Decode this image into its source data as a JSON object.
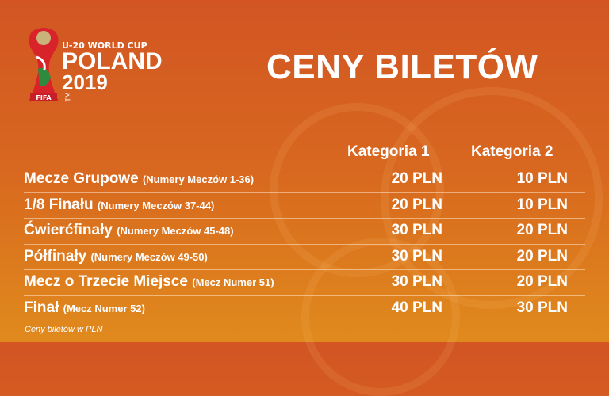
{
  "logo": {
    "line1": "U-20 WORLD CUP",
    "line2": "POLAND",
    "line3": "2019",
    "badge": "FIFA",
    "tm": "TM"
  },
  "title": "CENY BILETÓW",
  "columns": [
    "Kategoria 1",
    "Kategoria 2"
  ],
  "rows": [
    {
      "name": "Mecze Grupowe",
      "detail": "(Numery Meczów 1-36)",
      "cat1": "20 PLN",
      "cat2": "10 PLN"
    },
    {
      "name": "1/8 Finału",
      "detail": "(Numery Meczów 37-44)",
      "cat1": "20 PLN",
      "cat2": "10 PLN"
    },
    {
      "name": "Ćwierćfinały",
      "detail": "(Numery Meczów 45-48)",
      "cat1": "30 PLN",
      "cat2": "20 PLN"
    },
    {
      "name": "Półfinały",
      "detail": "(Numery Meczów 49-50)",
      "cat1": "30 PLN",
      "cat2": "20 PLN"
    },
    {
      "name": "Mecz o Trzecie Miejsce",
      "detail": "(Mecz Numer 51)",
      "cat1": "30 PLN",
      "cat2": "20 PLN"
    },
    {
      "name": "Finał",
      "detail": "(Mecz Numer 52)",
      "cat1": "40 PLN",
      "cat2": "30 PLN"
    }
  ],
  "note": "Ceny biletów w PLN",
  "colors": {
    "bg_top": "#d25523",
    "bg_bottom": "#e08a1d",
    "text": "#ffffff"
  }
}
